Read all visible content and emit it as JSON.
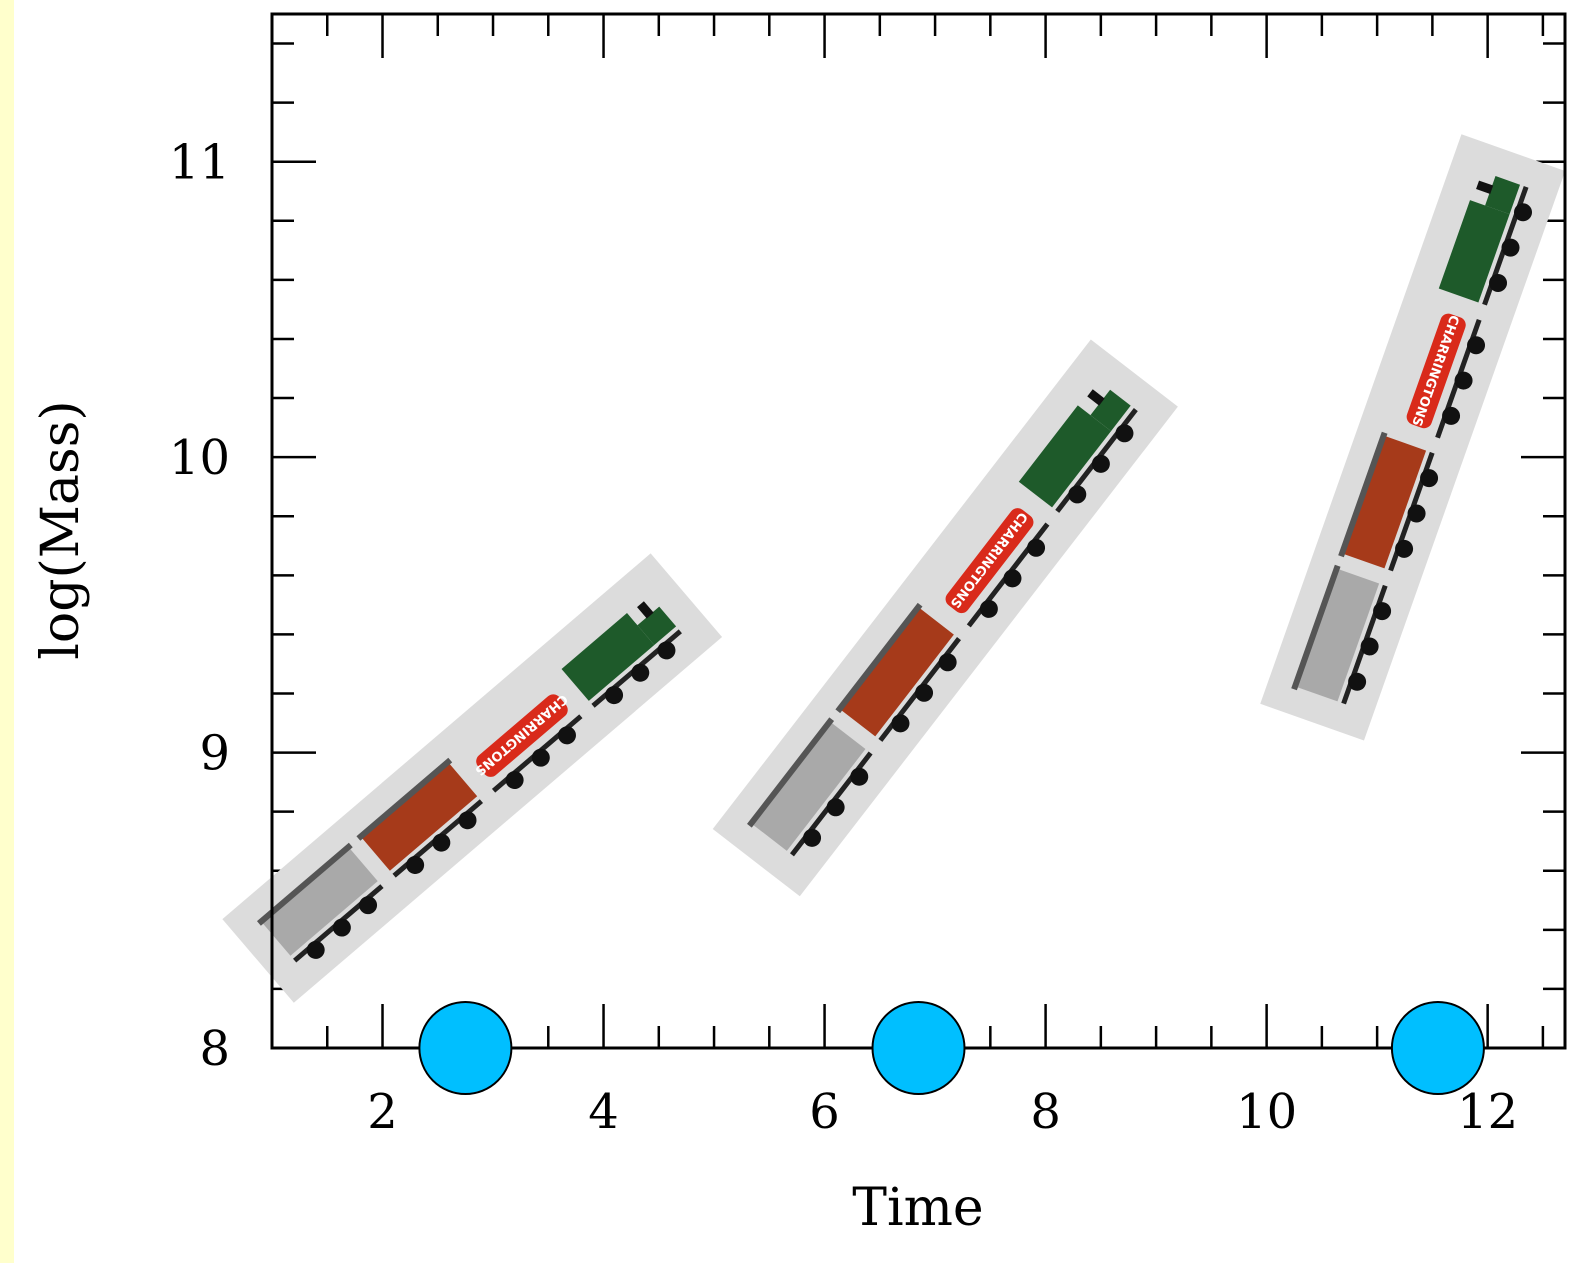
{
  "chart_data": {
    "type": "scatter",
    "xlabel": "Time",
    "ylabel": "log(Mass)",
    "xlim": [
      1.0,
      12.7
    ],
    "ylim": [
      8.0,
      11.5
    ],
    "x_ticks_major": [
      2,
      4,
      6,
      8,
      10,
      12
    ],
    "x_tick_labels": [
      "2",
      "4",
      "6",
      "8",
      "10",
      "12"
    ],
    "y_ticks_major": [
      8,
      9,
      10,
      11
    ],
    "y_tick_labels": [
      "8",
      "9",
      "10",
      "11"
    ],
    "x_minor_step": 0.5,
    "y_minor_step": 0.2,
    "grid": false,
    "markers": {
      "name": "time markers",
      "color": "#00bfff",
      "x": [
        2.75,
        6.85,
        11.55
      ],
      "y": [
        8.0,
        8.0,
        8.0
      ]
    },
    "trains": [
      {
        "x_start": 1.1,
        "y_start": 8.3,
        "x_end": 4.7,
        "y_end": 9.45
      },
      {
        "x_start": 5.6,
        "y_start": 8.65,
        "x_end": 8.8,
        "y_end": 10.2
      },
      {
        "x_start": 10.6,
        "y_start": 9.15,
        "x_end": 12.3,
        "y_end": 10.95
      }
    ],
    "train_wagon_text": "CHARRINGTONS",
    "colors": {
      "engine": "#1e5a2a",
      "van": "#a63a1a",
      "tanker": "#d92a1a",
      "brake_van": "#a9a9a9",
      "strip": "#dcdcdc"
    }
  }
}
